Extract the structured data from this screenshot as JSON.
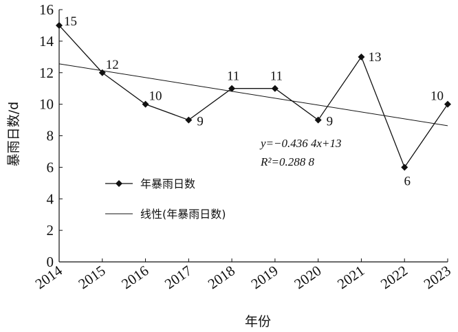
{
  "chart_data": {
    "type": "line",
    "x": [
      "2014",
      "2015",
      "2016",
      "2017",
      "2018",
      "2019",
      "2020",
      "2021",
      "2022",
      "2023"
    ],
    "series": [
      {
        "name": "年暴雨日数",
        "values": [
          15,
          12,
          10,
          9,
          11,
          11,
          9,
          13,
          6,
          10
        ]
      }
    ],
    "trendline": {
      "name": "线性(年暴雨日数)",
      "type": "linear",
      "equation": "y=−0.436 4x+13",
      "r_squared": "R²=0.288 8",
      "slope": -0.4364,
      "intercept": 13
    },
    "xlabel": "年份",
    "ylabel": "暴雨日数/d",
    "ylim": [
      0,
      16
    ],
    "yticks": [
      "0",
      "2",
      "4",
      "6",
      "8",
      "10",
      "12",
      "14",
      "16"
    ],
    "grid": false,
    "legend": "center-left"
  }
}
